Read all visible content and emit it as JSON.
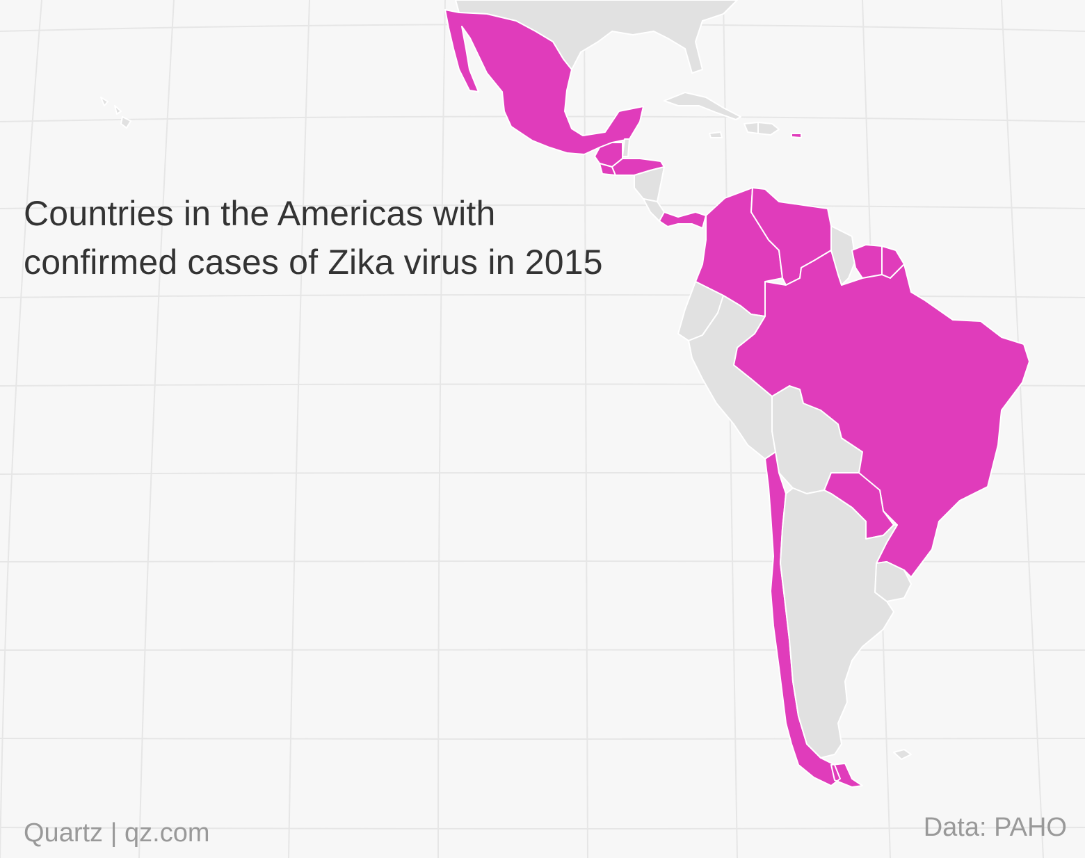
{
  "title": {
    "line1": "Countries in the Americas with",
    "line2": "confirmed cases of Zika virus in 2015"
  },
  "credit": "Quartz | qz.com",
  "source": "Data: PAHO",
  "colors": {
    "background": "#f7f7f7",
    "confirmed": "#e03cbb",
    "no_cases": "#e1e1e1",
    "border": "#ffffff",
    "graticule": "#e6e6e6",
    "title_text": "#333333",
    "footer_text": "#999999"
  },
  "countries_confirmed": [
    "Mexico",
    "Guatemala",
    "El Salvador",
    "Honduras",
    "Panama",
    "Colombia",
    "Venezuela",
    "Suriname",
    "French Guiana",
    "Brazil",
    "Paraguay",
    "Chile",
    "Puerto Rico"
  ],
  "countries_no_cases": [
    "United States",
    "Cuba",
    "Haiti",
    "Dominican Republic",
    "Jamaica",
    "Belize",
    "Nicaragua",
    "Costa Rica",
    "Guyana",
    "Ecuador",
    "Peru",
    "Bolivia",
    "Argentina",
    "Uruguay",
    "Falkland Islands",
    "Hawaii"
  ]
}
